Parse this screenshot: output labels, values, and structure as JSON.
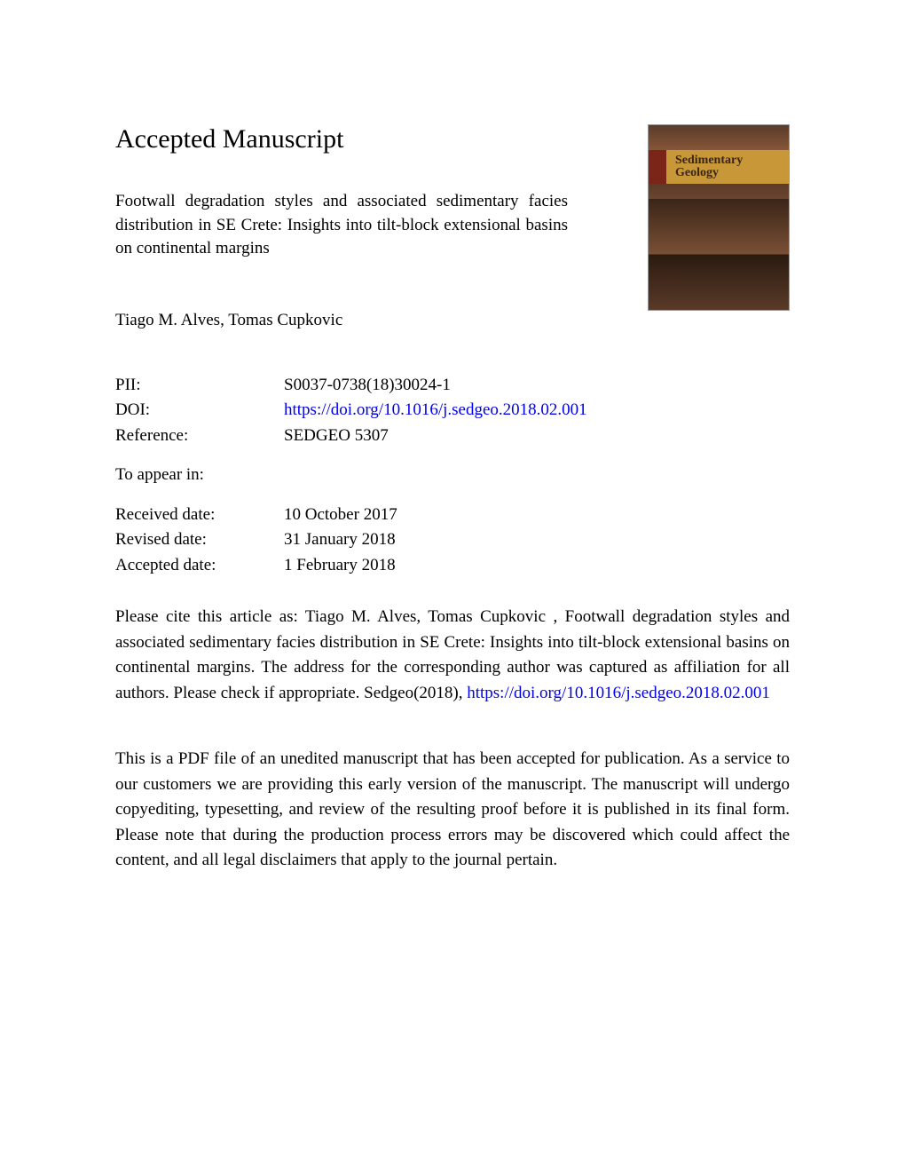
{
  "heading": "Accepted Manuscript",
  "article_title": "Footwall degradation styles and associated sedimentary facies distribution in SE Crete: Insights into tilt-block extensional basins on continental margins",
  "authors": "Tiago M. Alves, Tomas Cupkovic",
  "journal_cover": {
    "title_line1": "Sedimentary",
    "title_line2": "Geology"
  },
  "metadata": {
    "pii_label": "PII:",
    "pii_value": "S0037-0738(18)30024-1",
    "doi_label": "DOI:",
    "doi_value": "https://doi.org/10.1016/j.sedgeo.2018.02.001",
    "reference_label": "Reference:",
    "reference_value": "SEDGEO 5307",
    "appear_label": "To appear in:",
    "appear_value": "",
    "received_label": "Received date:",
    "received_value": "10 October 2017",
    "revised_label": "Revised date:",
    "revised_value": "31 January 2018",
    "accepted_label": "Accepted date:",
    "accepted_value": "1 February 2018"
  },
  "citation": {
    "prefix": "Please cite this article as: Tiago M. Alves, Tomas Cupkovic , Footwall degradation styles and associated sedimentary facies distribution in SE Crete: Insights into tilt-block extensional basins on continental margins. The address for the corresponding author was captured as affiliation for all authors. Please check if appropriate. Sedgeo(2018), ",
    "link": "https://doi.org/10.1016/j.sedgeo.2018.02.001"
  },
  "disclaimer": "This is a PDF file of an unedited manuscript that has been accepted for publication. As a service to our customers we are providing this early version of the manuscript. The manuscript will undergo copyediting, typesetting, and review of the resulting proof before it is published in its final form. Please note that during the production process errors may be discovered which could affect the content, and all legal disclaimers that apply to the journal pertain."
}
